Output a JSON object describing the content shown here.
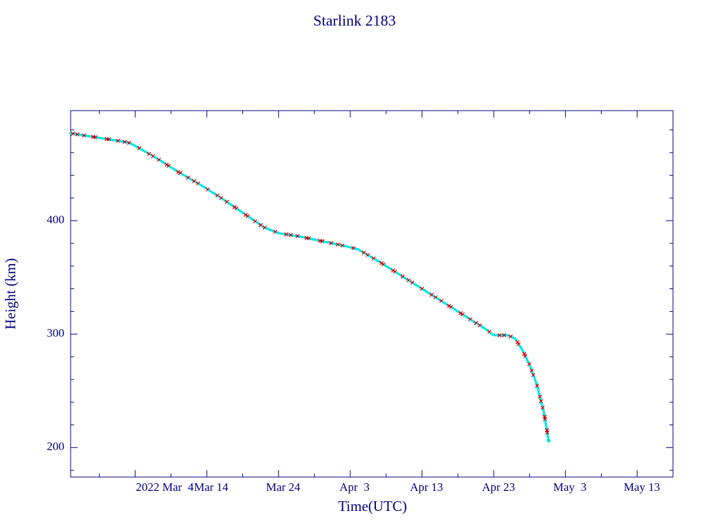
{
  "chart_data": {
    "type": "line",
    "title": "Starlink 2183",
    "xlabel": "Time(UTC)",
    "ylabel": "Height (km)",
    "x_tick_labels": [
      "2022 Mar  4",
      "Mar 14",
      "Mar 24",
      "Apr  3",
      "Apr 13",
      "Apr 23",
      "May  3",
      "May 13"
    ],
    "y_tick_labels": [
      "200",
      "300",
      "400"
    ],
    "y_ticks": [
      200,
      300,
      400
    ],
    "xlim": [
      "2022-02-23",
      "2022-05-18"
    ],
    "ylim": [
      174,
      497
    ],
    "grid": false,
    "colors": {
      "axes": "#000080",
      "text": "#000080",
      "line": "#000080",
      "marker_a": "#00e5e5",
      "marker_b": "#cc0000"
    },
    "series": [
      {
        "line_color": "#000080",
        "values": [
          [
            "2022-02-23",
            477
          ],
          [
            "2022-02-28",
            472
          ],
          [
            "2022-03-03",
            469
          ],
          [
            "2022-03-04",
            466
          ],
          [
            "2022-03-07",
            455
          ],
          [
            "2022-03-10",
            443
          ],
          [
            "2022-03-13",
            432
          ],
          [
            "2022-03-16",
            420
          ],
          [
            "2022-03-19",
            407
          ],
          [
            "2022-03-22",
            394
          ],
          [
            "2022-03-24",
            389
          ],
          [
            "2022-03-27",
            386
          ],
          [
            "2022-03-30",
            382
          ],
          [
            "2022-04-02",
            378
          ],
          [
            "2022-04-04",
            375
          ],
          [
            "2022-04-07",
            364
          ],
          [
            "2022-04-10",
            352
          ],
          [
            "2022-04-13",
            340
          ],
          [
            "2022-04-16",
            328
          ],
          [
            "2022-04-19",
            316
          ],
          [
            "2022-04-22",
            304
          ],
          [
            "2022-04-23",
            299
          ],
          [
            "2022-04-25",
            299
          ],
          [
            "2022-04-26",
            296
          ],
          [
            "2022-04-27",
            286
          ],
          [
            "2022-04-28",
            273
          ],
          [
            "2022-04-29",
            256
          ],
          [
            "2022-04-30",
            231
          ],
          [
            "2022-04-30T16:00",
            206
          ]
        ]
      }
    ]
  }
}
